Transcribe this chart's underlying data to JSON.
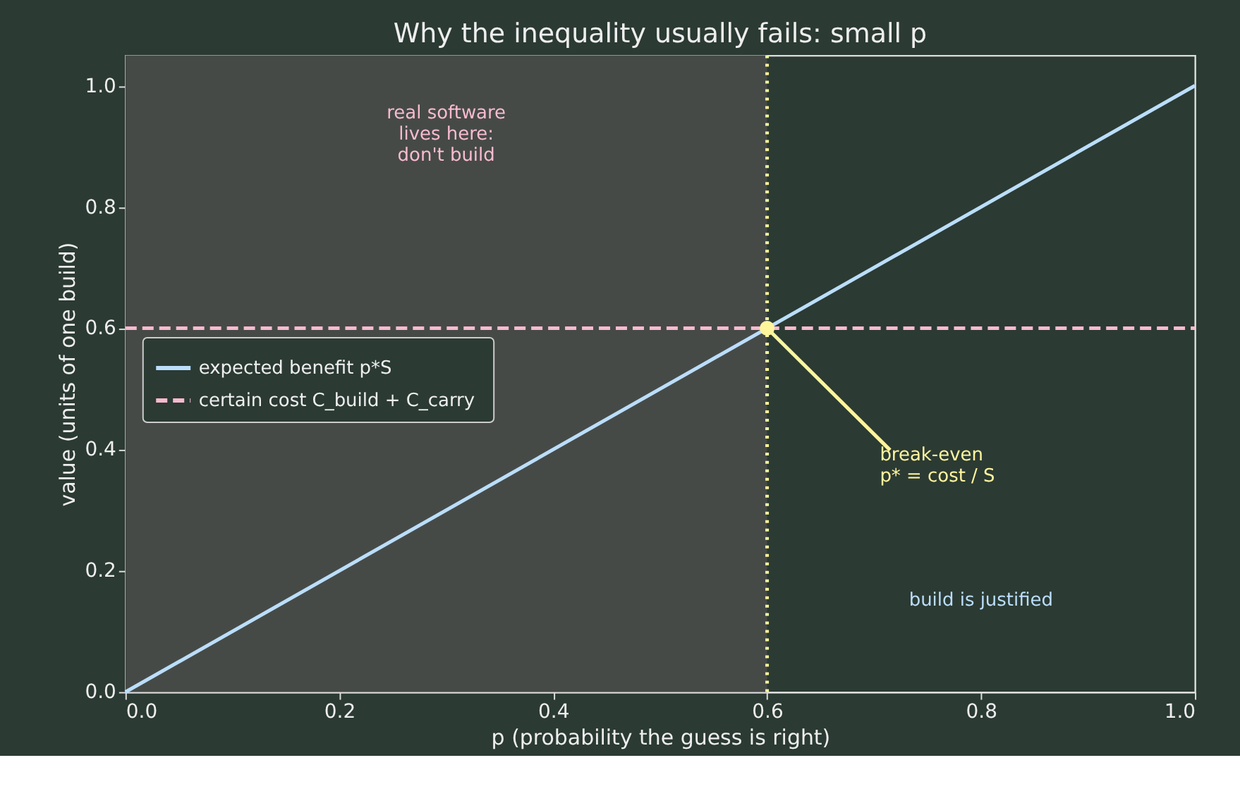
{
  "chart_data": {
    "type": "line",
    "title": "Why the inequality usually fails: small p",
    "xlabel": "p  (probability the guess is right)",
    "ylabel": "value (units of one build)",
    "xlim": [
      0,
      1
    ],
    "ylim": [
      0,
      1.05
    ],
    "xticks": [
      {
        "value": 0,
        "label": "0.0"
      },
      {
        "value": 0.2,
        "label": "0.2"
      },
      {
        "value": 0.4,
        "label": "0.4"
      },
      {
        "value": 0.6,
        "label": "0.6"
      },
      {
        "value": 0.8,
        "label": "0.8"
      },
      {
        "value": 1,
        "label": "1.0"
      }
    ],
    "yticks": [
      {
        "value": 0,
        "label": "0.0"
      },
      {
        "value": 0.2,
        "label": "0.2"
      },
      {
        "value": 0.4,
        "label": "0.4"
      },
      {
        "value": 0.6,
        "label": "0.6"
      },
      {
        "value": 0.8,
        "label": "0.8"
      },
      {
        "value": 1,
        "label": "1.0"
      }
    ],
    "series": [
      {
        "name": "expected benefit  p*S",
        "color": "#bbdefb",
        "line_style": "solid",
        "x": [
          0,
          1
        ],
        "values": [
          0,
          1
        ]
      },
      {
        "name": "certain cost  C_build + C_carry",
        "color": "#f8bbd0",
        "line_style": "dashed",
        "x": [
          0,
          1
        ],
        "values": [
          0.6,
          0.6
        ]
      },
      {
        "type": "scatter",
        "color": "#fff59d",
        "marker": "circle",
        "x": [
          0.6
        ],
        "values": [
          0.6
        ]
      }
    ],
    "ref_lines": [
      {
        "axis": "x",
        "value": 0.6,
        "color": "#fff59d",
        "line_style": "dotted"
      }
    ],
    "bands": [
      {
        "axis": "x",
        "from": 0,
        "to": 0.6,
        "color": "#464a47",
        "label": "real software\nlives here:\ndon't build"
      }
    ],
    "annotations": [
      {
        "text": "break-even\np* = cost / S",
        "x": 0.6,
        "y": 0.6
      },
      "build is justified"
    ],
    "legend": "center left",
    "grid": false
  }
}
